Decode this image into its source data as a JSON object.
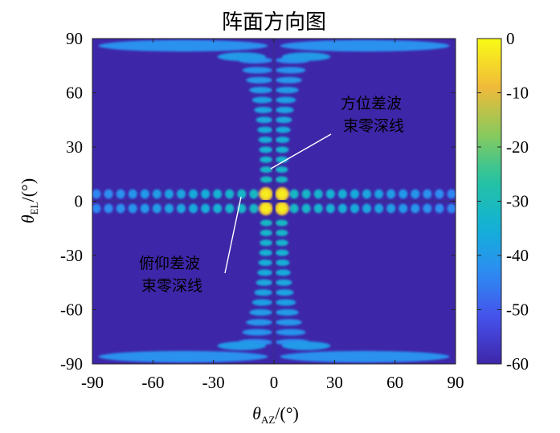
{
  "chart_data": {
    "type": "heatmap",
    "title": "阵面方向图",
    "xlabel": {
      "symbol": "θ",
      "sub": "AZ",
      "unit": "/(°)"
    },
    "ylabel": {
      "symbol": "θ",
      "sub": "EL",
      "unit": "/(°)"
    },
    "xlim": [
      -90,
      90
    ],
    "ylim": [
      -90,
      90
    ],
    "xticks": [
      "-90",
      "-60",
      "-30",
      "0",
      "30",
      "60",
      "90"
    ],
    "yticks": [
      "90",
      "60",
      "30",
      "0",
      "-30",
      "-60",
      "-90"
    ],
    "colorbar": {
      "range": [
        -60,
        0
      ],
      "ticks": [
        "0",
        "-10",
        "-20",
        "-30",
        "-40",
        "-50",
        "-60"
      ],
      "colormap": "parula"
    },
    "annotations": [
      {
        "lines": [
          "方位差波",
          "束零深线"
        ],
        "target": [
          0,
          15
        ]
      },
      {
        "lines": [
          "俯仰差波",
          "束零深线"
        ],
        "target": [
          -10,
          0
        ]
      }
    ],
    "colors": {
      "background": "#3e26a8",
      "null_line": "#3a2a9a",
      "peak": "#f9a23a",
      "annotation": "#ffffff"
    }
  }
}
